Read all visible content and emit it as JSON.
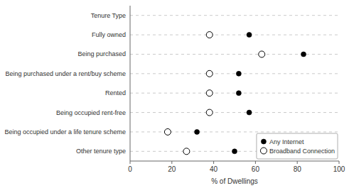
{
  "chart_data": {
    "type": "dot",
    "orientation": "horizontal",
    "categories": [
      "Tenure Type",
      "Fully owned",
      "Being purchased",
      "Being purchased under a rent/buy scheme",
      "Rented",
      "Being occupied rent-free",
      "Being occupied under a life tenure scheme",
      "Other tenure type"
    ],
    "series": [
      {
        "name": "Any Internet",
        "color": "#000000",
        "marker": "circle",
        "values": [
          null,
          57,
          83,
          52,
          52,
          57,
          32,
          50
        ]
      },
      {
        "name": "Broadband Connection",
        "color": "#ffffff",
        "marker": "circle",
        "values": [
          null,
          38,
          63,
          38,
          38,
          38,
          18,
          27
        ]
      }
    ],
    "xlabel": "% of Dwellings",
    "xlim": [
      0,
      100
    ],
    "xticks": [
      0,
      20,
      40,
      60,
      80,
      100
    ],
    "grid": true,
    "legend": "lower right"
  }
}
